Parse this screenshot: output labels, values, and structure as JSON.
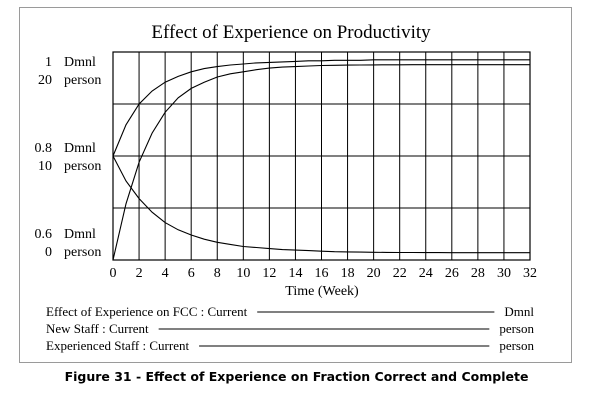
{
  "chart_data": {
    "type": "line",
    "title": "Effect of Experience on Productivity",
    "xlabel": "Time (Week)",
    "xlim": [
      0,
      32
    ],
    "x_ticks": [
      "0",
      "2",
      "4",
      "6",
      "8",
      "10",
      "12",
      "14",
      "16",
      "18",
      "20",
      "22",
      "24",
      "26",
      "28",
      "30",
      "32"
    ],
    "grid": true,
    "axes": [
      {
        "unit": "Dmnl",
        "ticks": [
          "1",
          "0.8",
          "0.6"
        ],
        "range": [
          0.6,
          1
        ]
      },
      {
        "unit": "person",
        "ticks": [
          "20",
          "10",
          "0"
        ],
        "range": [
          0,
          20
        ]
      }
    ],
    "x": [
      0,
      1,
      2,
      3,
      4,
      5,
      6,
      7,
      8,
      9,
      10,
      11,
      12,
      13,
      14,
      15,
      16,
      17,
      18,
      19,
      20,
      21,
      22,
      23,
      24,
      25,
      26,
      27,
      28,
      29,
      30,
      31,
      32
    ],
    "series": [
      {
        "name": "Effect of Experience on FCC : Current",
        "unit": "Dmnl",
        "axis": 0,
        "values": [
          0.8,
          0.86,
          0.9,
          0.925,
          0.942,
          0.953,
          0.962,
          0.968,
          0.972,
          0.975,
          0.977,
          0.979,
          0.98,
          0.981,
          0.982,
          0.983,
          0.983,
          0.984,
          0.984,
          0.984,
          0.985,
          0.985,
          0.985,
          0.985,
          0.985,
          0.985,
          0.985,
          0.985,
          0.985,
          0.985,
          0.985,
          0.985,
          0.985
        ]
      },
      {
        "name": "New Staff : Current",
        "unit": "person",
        "axis": 1,
        "values": [
          10,
          7.6,
          5.9,
          4.6,
          3.6,
          2.9,
          2.4,
          2.0,
          1.7,
          1.5,
          1.3,
          1.2,
          1.1,
          1.0,
          0.95,
          0.9,
          0.85,
          0.8,
          0.78,
          0.76,
          0.74,
          0.73,
          0.72,
          0.72,
          0.71,
          0.71,
          0.7,
          0.7,
          0.7,
          0.7,
          0.7,
          0.7,
          0.7
        ]
      },
      {
        "name": "Experienced Staff : Current",
        "unit": "person",
        "axis": 1,
        "values": [
          0,
          5.4,
          9.4,
          12.2,
          14.2,
          15.6,
          16.5,
          17.1,
          17.6,
          17.9,
          18.1,
          18.3,
          18.45,
          18.55,
          18.6,
          18.65,
          18.7,
          18.72,
          18.74,
          18.75,
          18.76,
          18.77,
          18.77,
          18.78,
          18.78,
          18.78,
          18.78,
          18.78,
          18.78,
          18.78,
          18.78,
          18.78,
          18.78
        ]
      }
    ]
  },
  "caption": "Figure 31 - Effect of Experience on Fraction Correct and Complete"
}
